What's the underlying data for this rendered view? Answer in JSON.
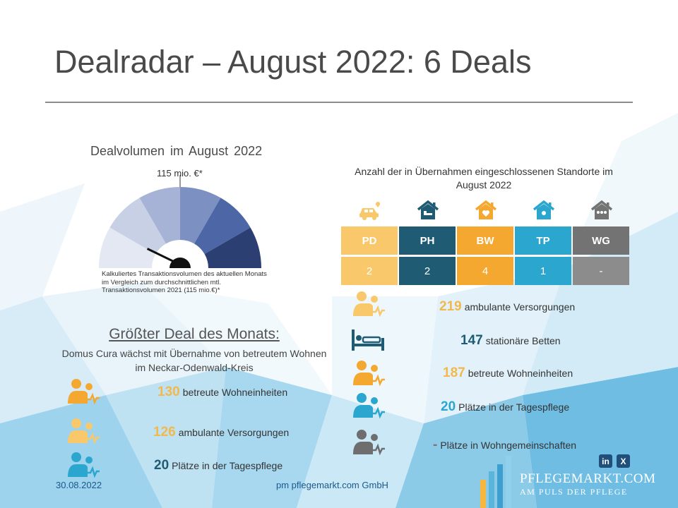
{
  "title": "Dealradar – August 2022: 6 Deals",
  "gauge": {
    "title": "Dealvolumen  im August  2022",
    "value_label": "115 mio. €*",
    "note": "Kalkuliertes Transaktionsvolumen des aktuellen Monats im Vergleich zum durchschnittlichen mtl. Transaktionsvolumen 2021 (115 mio.€)*",
    "level": 0.18
  },
  "standorte": {
    "title": "Anzahl der in Übernahmen eingeschlossenen Standorte im August 2022",
    "columns": [
      {
        "code": "PD",
        "value": "2",
        "color": "#f9c86a",
        "val_color": "#f9c86a",
        "icon": "car-care-icon"
      },
      {
        "code": "PH",
        "value": "2",
        "color": "#1f5c74",
        "val_color": "#1f5c74",
        "icon": "house-bed-icon"
      },
      {
        "code": "BW",
        "value": "4",
        "color": "#f5a830",
        "val_color": "#f5a830",
        "icon": "house-heart-icon"
      },
      {
        "code": "TP",
        "value": "1",
        "color": "#2aa6cf",
        "val_color": "#2aa6cf",
        "icon": "house-sun-icon"
      },
      {
        "code": "WG",
        "value": "-",
        "color": "#737373",
        "val_color": "#8c8c8c",
        "icon": "house-people-icon"
      }
    ]
  },
  "stats_right": [
    {
      "num": "219",
      "text": "ambulante Versorgungen",
      "icon": "care-person-icon"
    },
    {
      "num": "147",
      "text": "stationäre Betten",
      "icon": "bed-icon"
    },
    {
      "num": "187",
      "text": "betreute Wohneinheiten",
      "icon": "care-person-icon"
    },
    {
      "num": "20",
      "text": "Plätze in der Tagespflege",
      "icon": "care-person-icon"
    },
    {
      "num": "-",
      "text": "Plätze in Wohngemeinschaften",
      "icon": "care-person-icon"
    }
  ],
  "deal": {
    "title": "Größter Deal des Monats:",
    "subtitle": "Domus Cura wächst mit Übernahme von betreutem Wohnen im Neckar-Odenwald-Kreis",
    "stats": [
      {
        "num": "130",
        "text": "betreute Wohneinheiten",
        "icon": "care-person-icon"
      },
      {
        "num": "126",
        "text": "ambulante Versorgungen",
        "icon": "care-person-icon"
      },
      {
        "num": "20",
        "text": "Plätze in der Tagespflege",
        "icon": "care-person-icon"
      }
    ]
  },
  "footer": {
    "date": "30.08.2022",
    "company": "pm pflegemarkt.com GmbH",
    "logo_name": "PFLEGEMARKT.COM",
    "logo_tag": "AM PULS DER PFLEGE",
    "social": [
      "in",
      "X"
    ]
  }
}
